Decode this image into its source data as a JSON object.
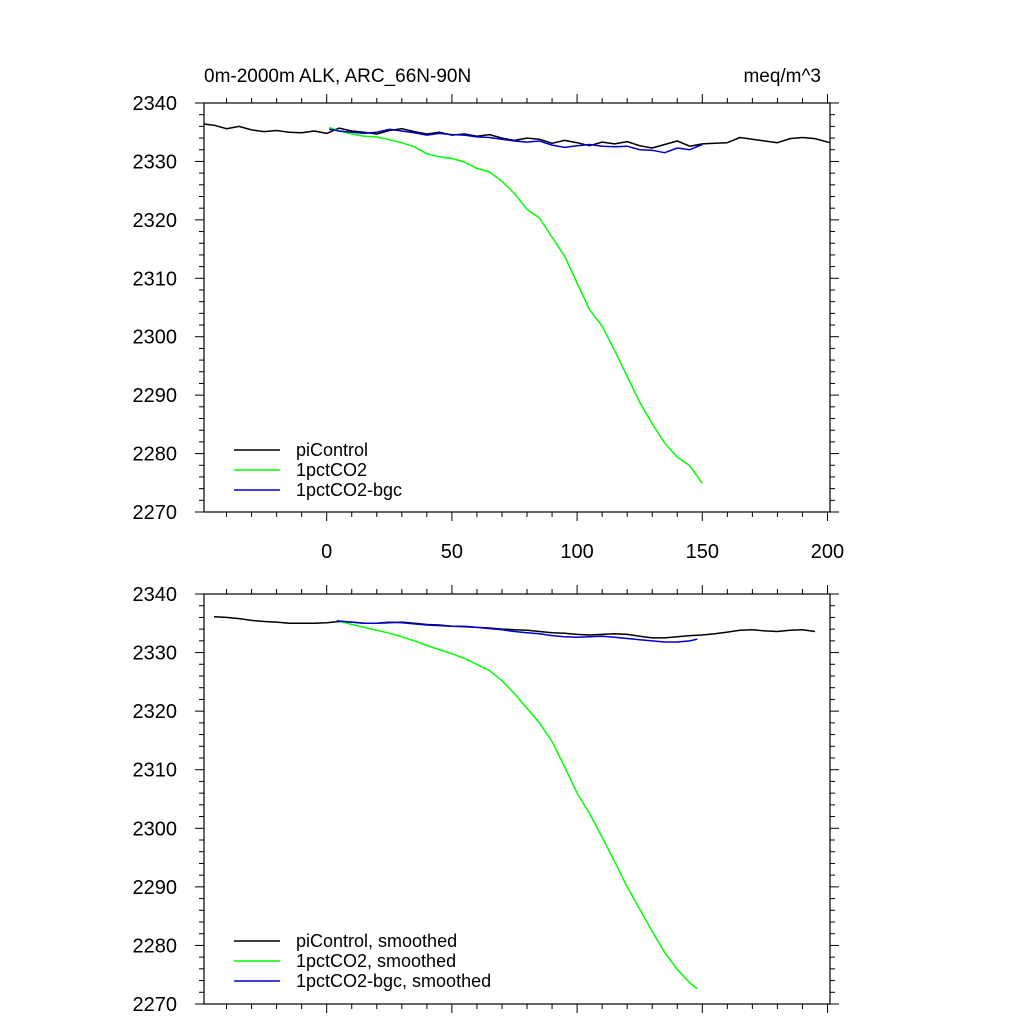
{
  "chart_data": [
    {
      "type": "line",
      "title": "0m-2000m ALK, ARC_66N-90N",
      "units": "meq/m^3",
      "xlim": [
        -49,
        201
      ],
      "ylim": [
        2270,
        2340
      ],
      "x_ticks": [
        0,
        50,
        100,
        150,
        200
      ],
      "x_tick_labels": [
        "0",
        "50",
        "100",
        "150",
        "200"
      ],
      "y_ticks": [
        2270,
        2280,
        2290,
        2300,
        2310,
        2320,
        2330,
        2340
      ],
      "y_tick_labels": [
        "2270",
        "2280",
        "2290",
        "2300",
        "2310",
        "2320",
        "2330",
        "2340"
      ],
      "legend_position": "bottom-left",
      "series": [
        {
          "name": "piControl",
          "color": "#000000",
          "x": [
            -49,
            -45,
            -40,
            -35,
            -30,
            -25,
            -20,
            -15,
            -10,
            -5,
            0,
            5,
            10,
            15,
            20,
            25,
            30,
            35,
            40,
            45,
            50,
            55,
            60,
            65,
            70,
            75,
            80,
            85,
            90,
            95,
            100,
            105,
            110,
            115,
            120,
            125,
            130,
            135,
            140,
            145,
            150,
            155,
            160,
            165,
            170,
            175,
            180,
            185,
            190,
            195,
            201
          ],
          "y": [
            2336.4,
            2336.2,
            2335.6,
            2336.0,
            2335.4,
            2335.1,
            2335.3,
            2335.0,
            2334.9,
            2335.2,
            2334.8,
            2335.7,
            2335.2,
            2335.0,
            2334.7,
            2335.3,
            2335.6,
            2335.1,
            2334.7,
            2335.0,
            2334.5,
            2334.7,
            2334.3,
            2334.6,
            2334.0,
            2333.6,
            2334.0,
            2333.8,
            2333.1,
            2333.6,
            2333.2,
            2332.7,
            2333.3,
            2333.0,
            2333.4,
            2332.7,
            2332.3,
            2332.9,
            2333.5,
            2332.6,
            2333.0,
            2333.1,
            2333.2,
            2334.1,
            2333.8,
            2333.5,
            2333.2,
            2333.9,
            2334.1,
            2333.9,
            2333.2
          ]
        },
        {
          "name": "1pctCO2",
          "color": "#00ff00",
          "x": [
            1,
            5,
            10,
            15,
            20,
            25,
            30,
            35,
            40,
            45,
            50,
            55,
            60,
            65,
            70,
            75,
            80,
            85,
            90,
            95,
            100,
            105,
            110,
            115,
            120,
            125,
            130,
            135,
            140,
            145,
            150
          ],
          "y": [
            2335.8,
            2335.2,
            2334.7,
            2334.3,
            2334.2,
            2333.7,
            2333.2,
            2332.5,
            2331.3,
            2330.8,
            2330.5,
            2329.9,
            2328.8,
            2328.2,
            2326.6,
            2324.5,
            2321.8,
            2320.3,
            2317.0,
            2313.8,
            2309.2,
            2304.6,
            2301.8,
            2297.6,
            2293.2,
            2288.8,
            2285.1,
            2281.8,
            2279.4,
            2277.9,
            2274.9
          ]
        },
        {
          "name": "1pctCO2-bgc",
          "color": "#0000cd",
          "x": [
            1,
            5,
            10,
            15,
            20,
            25,
            30,
            35,
            40,
            45,
            50,
            55,
            60,
            65,
            70,
            75,
            80,
            85,
            90,
            95,
            100,
            105,
            110,
            115,
            120,
            125,
            130,
            135,
            140,
            145,
            150
          ],
          "y": [
            2335.5,
            2335.2,
            2335.0,
            2334.8,
            2335.0,
            2335.5,
            2335.2,
            2334.9,
            2334.5,
            2334.8,
            2334.6,
            2334.5,
            2334.2,
            2334.1,
            2333.8,
            2333.5,
            2333.3,
            2333.5,
            2332.8,
            2332.4,
            2332.7,
            2332.9,
            2332.6,
            2332.5,
            2332.6,
            2332.0,
            2331.9,
            2331.5,
            2332.3,
            2332.0,
            2332.9
          ]
        }
      ]
    },
    {
      "type": "line",
      "title": "",
      "xlim": [
        -49,
        201
      ],
      "ylim": [
        2270,
        2340
      ],
      "x_ticks": [
        0,
        50,
        100,
        150,
        200
      ],
      "x_tick_labels": [],
      "y_ticks": [
        2270,
        2280,
        2290,
        2300,
        2310,
        2320,
        2330,
        2340
      ],
      "y_tick_labels": [
        "2270",
        "2280",
        "2290",
        "2300",
        "2310",
        "2320",
        "2330",
        "2340"
      ],
      "legend_position": "bottom-left",
      "series": [
        {
          "name": "piControl, smoothed",
          "color": "#000000",
          "x": [
            -45,
            -40,
            -35,
            -30,
            -25,
            -20,
            -15,
            -10,
            -5,
            0,
            5,
            10,
            15,
            20,
            25,
            30,
            35,
            40,
            45,
            50,
            55,
            60,
            65,
            70,
            75,
            80,
            85,
            90,
            95,
            100,
            105,
            110,
            115,
            120,
            125,
            130,
            135,
            140,
            145,
            150,
            155,
            160,
            165,
            170,
            175,
            180,
            185,
            190,
            195
          ],
          "y": [
            2336.1,
            2336.0,
            2335.8,
            2335.5,
            2335.3,
            2335.2,
            2335.0,
            2335.0,
            2335.0,
            2335.1,
            2335.3,
            2335.2,
            2335.0,
            2335.0,
            2335.1,
            2335.2,
            2335.0,
            2334.8,
            2334.7,
            2334.5,
            2334.4,
            2334.3,
            2334.2,
            2334.0,
            2333.9,
            2333.8,
            2333.6,
            2333.4,
            2333.3,
            2333.1,
            2333.0,
            2333.1,
            2333.2,
            2333.1,
            2332.8,
            2332.5,
            2332.5,
            2332.7,
            2332.9,
            2333.0,
            2333.2,
            2333.5,
            2333.8,
            2333.9,
            2333.7,
            2333.6,
            2333.8,
            2333.9,
            2333.6
          ]
        },
        {
          "name": "1pctCO2, smoothed",
          "color": "#00ff00",
          "x": [
            4,
            10,
            15,
            20,
            25,
            30,
            35,
            40,
            45,
            50,
            55,
            60,
            65,
            70,
            75,
            80,
            85,
            90,
            95,
            100,
            105,
            110,
            115,
            120,
            125,
            130,
            135,
            140,
            145,
            148
          ],
          "y": [
            2335.5,
            2334.8,
            2334.3,
            2333.8,
            2333.3,
            2332.7,
            2332.0,
            2331.2,
            2330.5,
            2329.8,
            2329.0,
            2328.0,
            2326.9,
            2325.2,
            2323.0,
            2320.5,
            2318.0,
            2314.8,
            2310.5,
            2306.0,
            2302.5,
            2298.5,
            2294.3,
            2290.0,
            2286.2,
            2282.4,
            2278.8,
            2275.9,
            2273.6,
            2272.6
          ]
        },
        {
          "name": "1pctCO2-bgc, smoothed",
          "color": "#0000cd",
          "x": [
            4,
            10,
            15,
            20,
            25,
            30,
            35,
            40,
            45,
            50,
            55,
            60,
            65,
            70,
            75,
            80,
            85,
            90,
            95,
            100,
            105,
            110,
            115,
            120,
            125,
            130,
            135,
            140,
            145,
            148
          ],
          "y": [
            2335.4,
            2335.2,
            2335.0,
            2335.0,
            2335.2,
            2335.1,
            2334.9,
            2334.7,
            2334.6,
            2334.5,
            2334.5,
            2334.3,
            2334.1,
            2333.9,
            2333.6,
            2333.4,
            2333.2,
            2332.9,
            2332.7,
            2332.6,
            2332.7,
            2332.8,
            2332.6,
            2332.4,
            2332.2,
            2332.0,
            2331.8,
            2331.8,
            2332.0,
            2332.3
          ]
        }
      ]
    }
  ]
}
